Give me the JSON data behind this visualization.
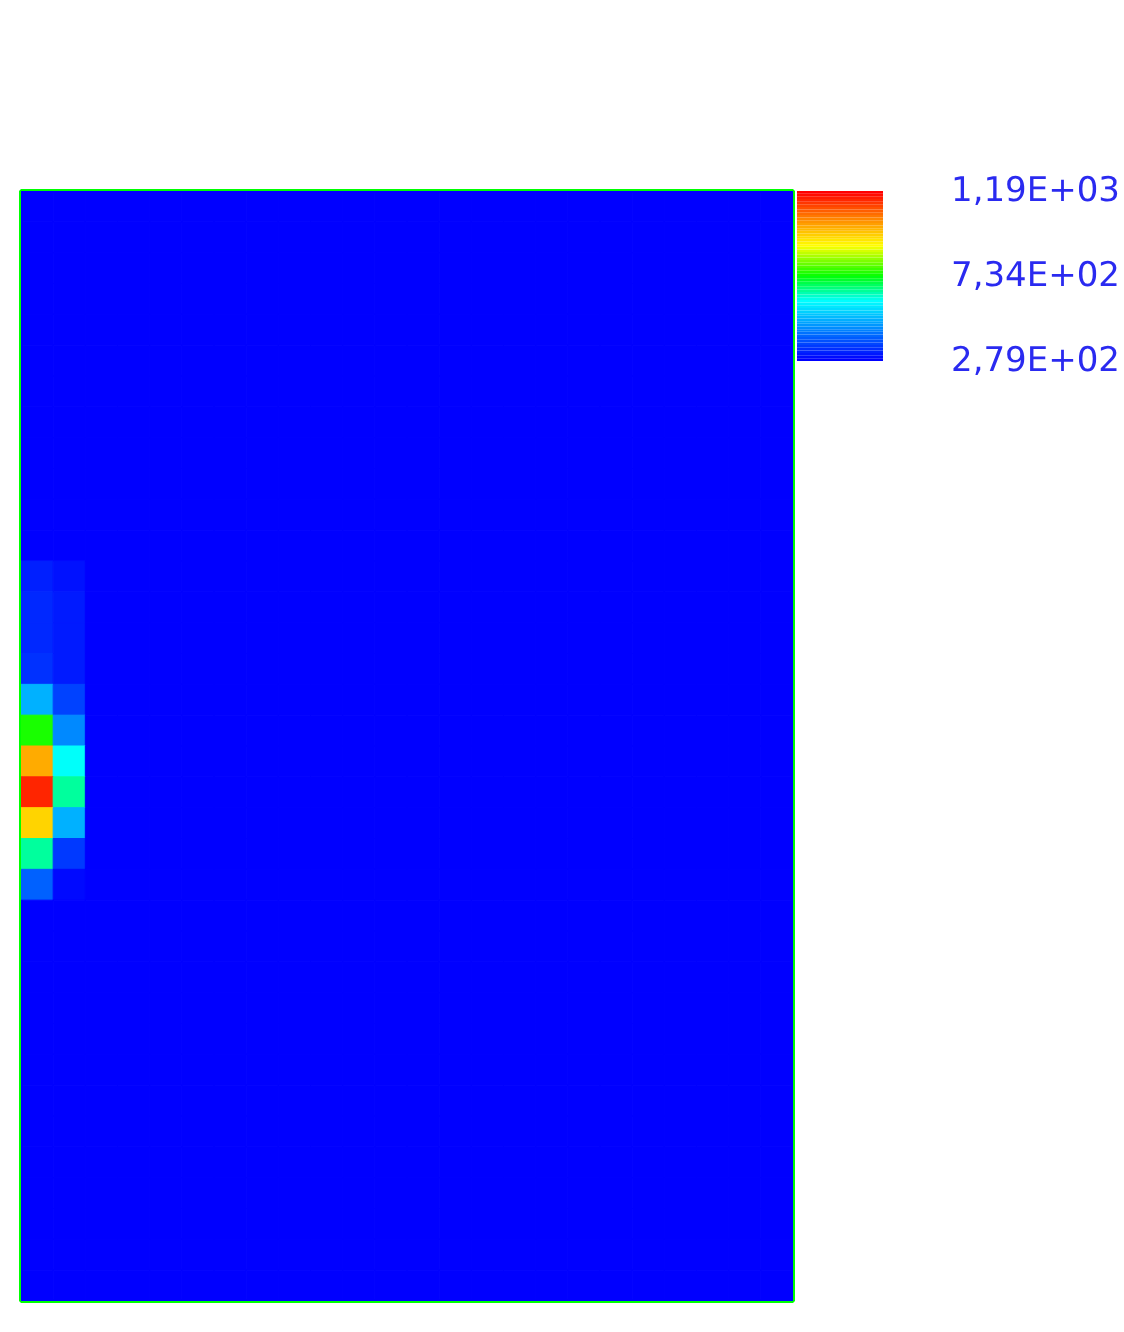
{
  "chart_data": {
    "type": "heatmap",
    "categories": [
      null,
      null,
      null,
      null,
      null,
      null,
      null,
      null,
      null,
      null,
      null,
      null,
      null,
      null,
      null,
      null,
      null,
      null,
      null,
      null,
      null,
      null,
      null,
      null
    ],
    "y_categories": [
      null,
      null,
      null,
      null,
      null,
      null,
      null,
      null,
      null,
      null,
      null,
      null,
      null,
      null,
      null,
      null,
      null,
      null,
      null,
      null,
      null,
      null,
      null,
      null,
      null,
      null,
      null,
      null,
      null,
      null,
      null,
      null,
      null,
      null,
      null,
      null
    ],
    "cells": [
      [
        279,
        279,
        279,
        279,
        279,
        279,
        279,
        279,
        279,
        279,
        279,
        279,
        279,
        279,
        279,
        279,
        279,
        279,
        279,
        279,
        279,
        279,
        279,
        279
      ],
      [
        279,
        279,
        279,
        279,
        279,
        279,
        279,
        279,
        279,
        279,
        279,
        279,
        279,
        279,
        279,
        279,
        279,
        279,
        279,
        279,
        279,
        279,
        279,
        279
      ],
      [
        279,
        279,
        279,
        279,
        279,
        279,
        279,
        279,
        279,
        279,
        279,
        279,
        279,
        279,
        279,
        279,
        279,
        279,
        279,
        279,
        279,
        279,
        279,
        279
      ],
      [
        279,
        279,
        279,
        279,
        279,
        279,
        279,
        279,
        279,
        279,
        279,
        279,
        279,
        279,
        279,
        279,
        279,
        279,
        279,
        279,
        279,
        279,
        279,
        279
      ],
      [
        279,
        279,
        279,
        279,
        279,
        279,
        279,
        279,
        279,
        279,
        279,
        279,
        279,
        279,
        279,
        279,
        279,
        279,
        279,
        279,
        279,
        279,
        279,
        279
      ],
      [
        279,
        279,
        279,
        279,
        279,
        279,
        279,
        279,
        279,
        279,
        279,
        279,
        279,
        279,
        279,
        279,
        279,
        279,
        279,
        279,
        279,
        279,
        279,
        279
      ],
      [
        279,
        279,
        279,
        279,
        279,
        279,
        279,
        279,
        279,
        279,
        279,
        279,
        279,
        279,
        279,
        279,
        279,
        279,
        279,
        279,
        279,
        279,
        279,
        279
      ],
      [
        279,
        279,
        279,
        279,
        279,
        279,
        279,
        279,
        279,
        279,
        279,
        279,
        279,
        279,
        279,
        279,
        279,
        279,
        279,
        279,
        279,
        279,
        279,
        279
      ],
      [
        279,
        279,
        279,
        279,
        279,
        279,
        279,
        279,
        279,
        279,
        279,
        279,
        279,
        279,
        279,
        279,
        279,
        279,
        279,
        279,
        279,
        279,
        279,
        279
      ],
      [
        279,
        279,
        279,
        279,
        279,
        279,
        279,
        279,
        279,
        279,
        279,
        279,
        279,
        279,
        279,
        279,
        279,
        279,
        279,
        279,
        279,
        279,
        279,
        279
      ],
      [
        279,
        279,
        279,
        279,
        279,
        279,
        279,
        279,
        279,
        279,
        279,
        279,
        279,
        279,
        279,
        279,
        279,
        279,
        279,
        279,
        279,
        279,
        279,
        279
      ],
      [
        279,
        279,
        279,
        279,
        279,
        279,
        279,
        279,
        279,
        279,
        279,
        279,
        279,
        279,
        279,
        279,
        279,
        279,
        279,
        279,
        279,
        279,
        279,
        279
      ],
      [
        320,
        300,
        279,
        279,
        279,
        279,
        279,
        279,
        279,
        279,
        279,
        279,
        279,
        279,
        279,
        279,
        279,
        279,
        279,
        279,
        279,
        279,
        279,
        279
      ],
      [
        330,
        310,
        279,
        279,
        279,
        279,
        279,
        279,
        279,
        279,
        279,
        279,
        279,
        279,
        279,
        279,
        279,
        279,
        279,
        279,
        279,
        279,
        279,
        279
      ],
      [
        330,
        310,
        279,
        279,
        279,
        279,
        279,
        279,
        279,
        279,
        279,
        279,
        279,
        279,
        279,
        279,
        279,
        279,
        279,
        279,
        279,
        279,
        279,
        279
      ],
      [
        340,
        310,
        279,
        279,
        279,
        279,
        279,
        279,
        279,
        279,
        279,
        279,
        279,
        279,
        279,
        279,
        279,
        279,
        279,
        279,
        279,
        279,
        279,
        279
      ],
      [
        500,
        360,
        279,
        279,
        279,
        279,
        279,
        279,
        279,
        279,
        279,
        279,
        279,
        279,
        279,
        279,
        279,
        279,
        279,
        279,
        279,
        279,
        279,
        279
      ],
      [
        750,
        450,
        279,
        279,
        279,
        279,
        279,
        279,
        279,
        279,
        279,
        279,
        279,
        279,
        279,
        279,
        279,
        279,
        279,
        279,
        279,
        279,
        279,
        279
      ],
      [
        1000,
        600,
        279,
        279,
        279,
        279,
        279,
        279,
        279,
        279,
        279,
        279,
        279,
        279,
        279,
        279,
        279,
        279,
        279,
        279,
        279,
        279,
        279,
        279
      ],
      [
        1150,
        650,
        279,
        279,
        279,
        279,
        279,
        279,
        279,
        279,
        279,
        279,
        279,
        279,
        279,
        279,
        279,
        279,
        279,
        279,
        279,
        279,
        279,
        279
      ],
      [
        950,
        500,
        279,
        279,
        279,
        279,
        279,
        279,
        279,
        279,
        279,
        279,
        279,
        279,
        279,
        279,
        279,
        279,
        279,
        279,
        279,
        279,
        279,
        279
      ],
      [
        650,
        350,
        279,
        279,
        279,
        279,
        279,
        279,
        279,
        279,
        279,
        279,
        279,
        279,
        279,
        279,
        279,
        279,
        279,
        279,
        279,
        279,
        279,
        279
      ],
      [
        400,
        290,
        279,
        279,
        279,
        279,
        279,
        279,
        279,
        279,
        279,
        279,
        279,
        279,
        279,
        279,
        279,
        279,
        279,
        279,
        279,
        279,
        279,
        279
      ],
      [
        279,
        279,
        279,
        279,
        279,
        279,
        279,
        279,
        279,
        279,
        279,
        279,
        279,
        279,
        279,
        279,
        279,
        279,
        279,
        279,
        279,
        279,
        279,
        279
      ],
      [
        279,
        279,
        279,
        279,
        279,
        279,
        279,
        279,
        279,
        279,
        279,
        279,
        279,
        279,
        279,
        279,
        279,
        279,
        279,
        279,
        279,
        279,
        279,
        279
      ],
      [
        279,
        279,
        279,
        279,
        279,
        279,
        279,
        279,
        279,
        279,
        279,
        279,
        279,
        279,
        279,
        279,
        279,
        279,
        279,
        279,
        279,
        279,
        279,
        279
      ],
      [
        279,
        279,
        279,
        279,
        279,
        279,
        279,
        279,
        279,
        279,
        279,
        279,
        279,
        279,
        279,
        279,
        279,
        279,
        279,
        279,
        279,
        279,
        279,
        279
      ],
      [
        279,
        279,
        279,
        279,
        279,
        279,
        279,
        279,
        279,
        279,
        279,
        279,
        279,
        279,
        279,
        279,
        279,
        279,
        279,
        279,
        279,
        279,
        279,
        279
      ],
      [
        279,
        279,
        279,
        279,
        279,
        279,
        279,
        279,
        279,
        279,
        279,
        279,
        279,
        279,
        279,
        279,
        279,
        279,
        279,
        279,
        279,
        279,
        279,
        279
      ],
      [
        279,
        279,
        279,
        279,
        279,
        279,
        279,
        279,
        279,
        279,
        279,
        279,
        279,
        279,
        279,
        279,
        279,
        279,
        279,
        279,
        279,
        279,
        279,
        279
      ],
      [
        279,
        279,
        279,
        279,
        279,
        279,
        279,
        279,
        279,
        279,
        279,
        279,
        279,
        279,
        279,
        279,
        279,
        279,
        279,
        279,
        279,
        279,
        279,
        279
      ],
      [
        279,
        279,
        279,
        279,
        279,
        279,
        279,
        279,
        279,
        279,
        279,
        279,
        279,
        279,
        279,
        279,
        279,
        279,
        279,
        279,
        279,
        279,
        279,
        279
      ],
      [
        279,
        279,
        279,
        279,
        279,
        279,
        279,
        279,
        279,
        279,
        279,
        279,
        279,
        279,
        279,
        279,
        279,
        279,
        279,
        279,
        279,
        279,
        279,
        279
      ],
      [
        279,
        279,
        279,
        279,
        279,
        279,
        279,
        279,
        279,
        279,
        279,
        279,
        279,
        279,
        279,
        279,
        279,
        279,
        279,
        279,
        279,
        279,
        279,
        279
      ],
      [
        279,
        279,
        279,
        279,
        279,
        279,
        279,
        279,
        279,
        279,
        279,
        279,
        279,
        279,
        279,
        279,
        279,
        279,
        279,
        279,
        279,
        279,
        279,
        279
      ],
      [
        279,
        279,
        279,
        279,
        279,
        279,
        279,
        279,
        279,
        279,
        279,
        279,
        279,
        279,
        279,
        279,
        279,
        279,
        279,
        279,
        279,
        279,
        279,
        279
      ]
    ],
    "clim": [
      279,
      1190
    ],
    "cticks": [
      {
        "value": 279,
        "label": "2,79E+02"
      },
      {
        "value": 734,
        "label": "7,34E+02"
      },
      {
        "value": 1190,
        "label": "1,19E+03"
      }
    ],
    "tick_labels": false
  }
}
